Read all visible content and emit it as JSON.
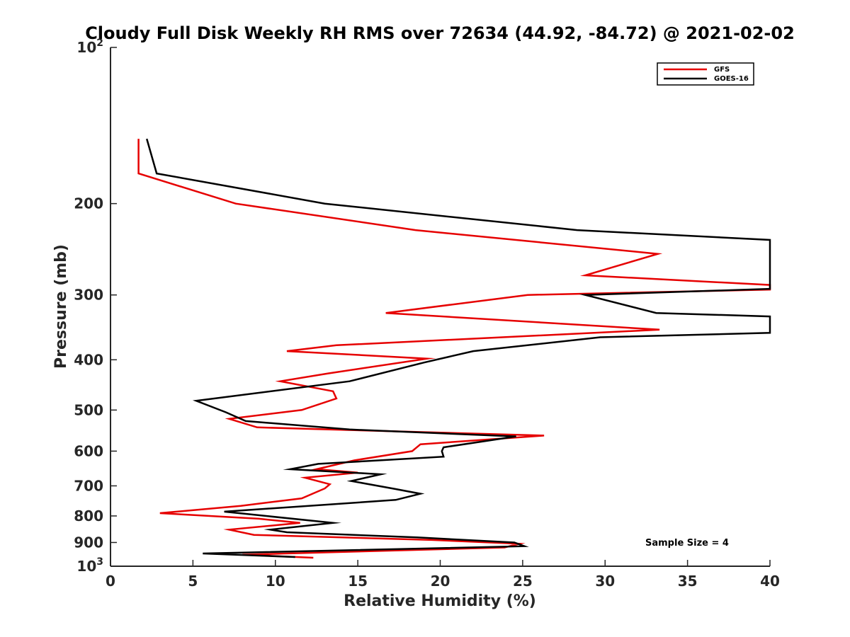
{
  "chart_data": {
    "type": "line",
    "title": "Cloudy Full Disk Weekly RH RMS over 72634 (44.92, -84.72) @ 2021-02-02",
    "xlabel": "Relative Humidity (%)",
    "ylabel": "Pressure (mb)",
    "xlim": [
      0,
      40
    ],
    "ylim": [
      100,
      1000
    ],
    "y_scale": "log",
    "y_reversed": true,
    "grid": false,
    "legend_position": "top-right",
    "x_ticks": [
      "0",
      "5",
      "10",
      "15",
      "20",
      "25",
      "30",
      "35",
      "40"
    ],
    "y_ticks": [
      {
        "value": 100,
        "label": "10",
        "sup": "2"
      },
      {
        "value": 200,
        "label": "200"
      },
      {
        "value": 300,
        "label": "300"
      },
      {
        "value": 400,
        "label": "400"
      },
      {
        "value": 500,
        "label": "500"
      },
      {
        "value": 600,
        "label": "600"
      },
      {
        "value": 700,
        "label": "700"
      },
      {
        "value": 800,
        "label": "800"
      },
      {
        "value": 900,
        "label": "900"
      },
      {
        "value": 1000,
        "label": "10",
        "sup": "3"
      }
    ],
    "annotation": "Sample Size = 4",
    "series": [
      {
        "name": "GFS",
        "color": "#e60000",
        "points": [
          [
            1.7,
            150
          ],
          [
            1.7,
            175
          ],
          [
            7.6,
            200
          ],
          [
            18.5,
            225
          ],
          [
            33.2,
            250
          ],
          [
            28.8,
            275
          ],
          [
            40,
            287
          ],
          [
            40,
            293
          ],
          [
            25.3,
            300
          ],
          [
            16.7,
            325
          ],
          [
            33.3,
            350
          ],
          [
            13.7,
            375
          ],
          [
            10.7,
            385
          ],
          [
            19.2,
            398
          ],
          [
            13.2,
            425
          ],
          [
            10.3,
            440
          ],
          [
            13.5,
            460
          ],
          [
            13.7,
            475
          ],
          [
            11.6,
            500
          ],
          [
            7.2,
            520
          ],
          [
            8.9,
            540
          ],
          [
            26.3,
            560
          ],
          [
            18.8,
            582
          ],
          [
            18.3,
            600
          ],
          [
            14.8,
            625
          ],
          [
            12.5,
            650
          ],
          [
            15.0,
            660
          ],
          [
            11.8,
            675
          ],
          [
            13.3,
            695
          ],
          [
            13.0,
            708
          ],
          [
            11.6,
            740
          ],
          [
            7.9,
            765
          ],
          [
            3.0,
            790
          ],
          [
            9.0,
            810
          ],
          [
            11.5,
            825
          ],
          [
            7.2,
            850
          ],
          [
            8.7,
            870
          ],
          [
            19.5,
            890
          ],
          [
            24.8,
            905
          ],
          [
            23.9,
            920
          ],
          [
            8.0,
            950
          ],
          [
            12.3,
            963
          ]
        ]
      },
      {
        "name": "GOES-16",
        "color": "#000000",
        "points": [
          [
            2.2,
            150
          ],
          [
            2.8,
            175
          ],
          [
            13.0,
            200
          ],
          [
            28.3,
            225
          ],
          [
            40,
            235
          ],
          [
            40,
            292
          ],
          [
            28.8,
            300
          ],
          [
            33.1,
            325
          ],
          [
            40,
            330
          ],
          [
            40,
            355
          ],
          [
            29.7,
            362
          ],
          [
            22.0,
            385
          ],
          [
            19.0,
            405
          ],
          [
            14.5,
            440
          ],
          [
            5.2,
            480
          ],
          [
            7.0,
            505
          ],
          [
            8.2,
            525
          ],
          [
            14.5,
            545
          ],
          [
            24.6,
            562
          ],
          [
            20.2,
            590
          ],
          [
            20.1,
            600
          ],
          [
            20.2,
            615
          ],
          [
            12.6,
            635
          ],
          [
            10.9,
            650
          ],
          [
            16.4,
            665
          ],
          [
            14.6,
            685
          ],
          [
            17.3,
            710
          ],
          [
            18.8,
            725
          ],
          [
            17.3,
            745
          ],
          [
            6.9,
            785
          ],
          [
            13.5,
            825
          ],
          [
            9.7,
            850
          ],
          [
            10.7,
            860
          ],
          [
            18.6,
            880
          ],
          [
            24.5,
            900
          ],
          [
            25.1,
            915
          ],
          [
            5.6,
            945
          ],
          [
            11.2,
            960
          ]
        ]
      }
    ]
  }
}
